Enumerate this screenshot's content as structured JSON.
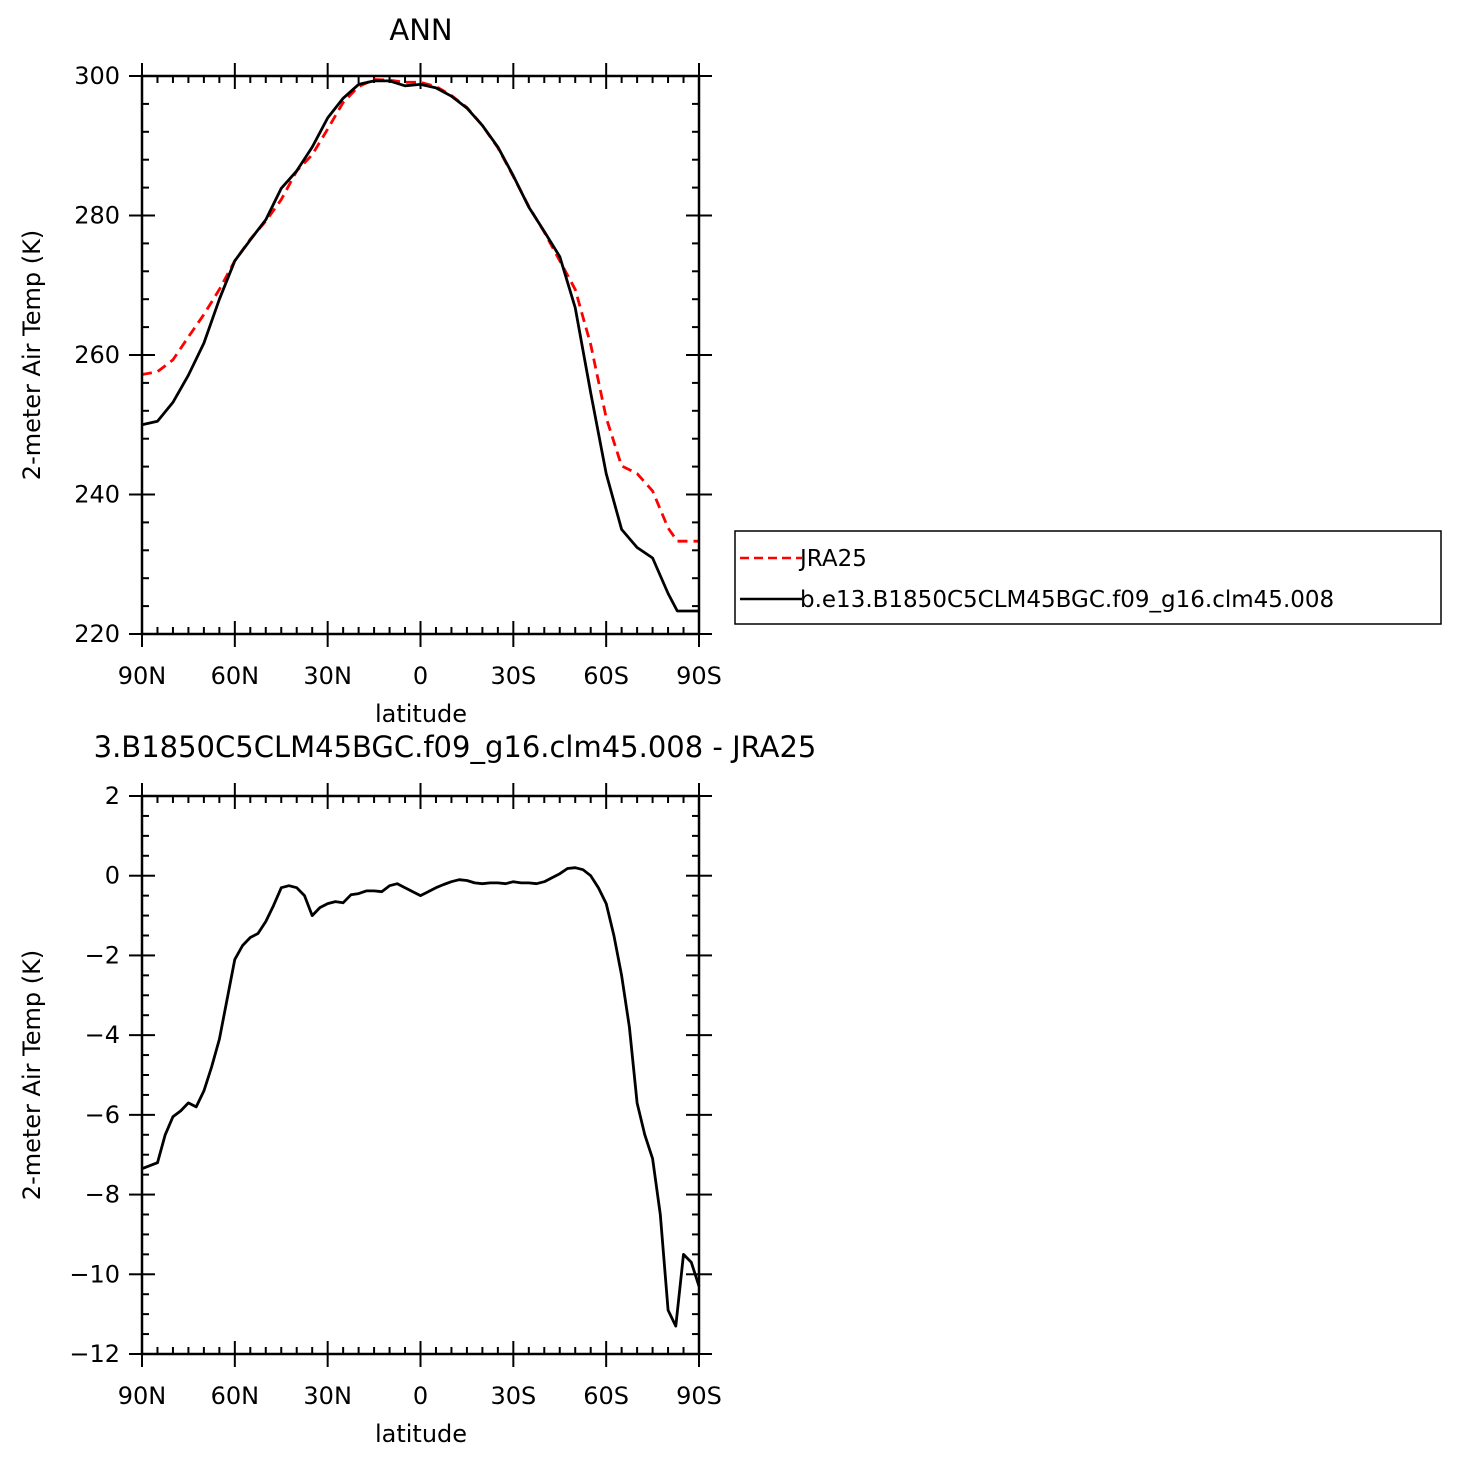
{
  "chart_data": [
    {
      "type": "line",
      "title": "ANN",
      "xlabel": "latitude",
      "ylabel": "2-meter Air Temp (K)",
      "xlim": [
        90,
        -90
      ],
      "ylim": [
        220,
        300
      ],
      "x_tick_labels": [
        "90N",
        "60N",
        "30N",
        "0",
        "30S",
        "60S",
        "90S"
      ],
      "x_tick_values": [
        90,
        60,
        30,
        0,
        -30,
        -60,
        -90
      ],
      "y_tick_values": [
        220,
        240,
        260,
        280,
        300
      ],
      "y_tick_labels": [
        "220",
        "240",
        "260",
        "280",
        "300"
      ],
      "legend_position": "right",
      "series": [
        {
          "name": "JRA25",
          "color": "#ff0000",
          "dash": "dashed",
          "x": [
            90,
            85,
            80,
            75,
            70,
            65,
            60,
            55,
            50,
            45,
            40,
            35,
            30,
            25,
            20,
            15,
            10,
            5,
            0,
            -5,
            -10,
            -15,
            -20,
            -25,
            -30,
            -35,
            -40,
            -45,
            -50,
            -55,
            -60,
            -65,
            -70,
            -75,
            -80,
            -83,
            -85,
            -88,
            -90
          ],
          "y": [
            257.2,
            257.6,
            259.3,
            262.6,
            265.8,
            269.4,
            273.5,
            276.6,
            279.2,
            282.3,
            286.4,
            288.7,
            292.4,
            296.2,
            298.5,
            299.5,
            299.4,
            299.1,
            299.1,
            298.5,
            297.2,
            295.5,
            292.9,
            289.7,
            285.6,
            281.3,
            277.6,
            273.5,
            269.4,
            261.5,
            251.0,
            244.1,
            243.0,
            240.5,
            235.2,
            233.3,
            233.3,
            233.3,
            233.3
          ]
        },
        {
          "name": "b.e13.B1850C5CLM45BGC.f09_g16.clm45.008",
          "color": "#000000",
          "dash": "solid",
          "x": [
            90,
            85,
            80,
            75,
            70,
            65,
            60,
            55,
            50,
            45,
            40,
            35,
            30,
            25,
            20,
            15,
            10,
            5,
            0,
            -5,
            -10,
            -15,
            -20,
            -25,
            -30,
            -35,
            -40,
            -45,
            -50,
            -55,
            -60,
            -65,
            -70,
            -75,
            -80,
            -83,
            -85,
            -88,
            -90
          ],
          "y": [
            250.0,
            250.5,
            253.2,
            257.1,
            261.7,
            268.0,
            273.5,
            276.5,
            279.4,
            283.9,
            286.4,
            289.8,
            294.0,
            296.8,
            298.8,
            299.3,
            299.3,
            298.6,
            298.8,
            298.3,
            297.1,
            295.4,
            292.9,
            289.8,
            285.7,
            281.2,
            277.7,
            274.1,
            266.8,
            254.6,
            243.0,
            235.0,
            232.4,
            230.9,
            225.8,
            223.3,
            223.3,
            223.3,
            223.3
          ]
        }
      ]
    },
    {
      "type": "line",
      "title": "3.B1850C5CLM45BGC.f09_g16.clm45.008 - JRA25",
      "xlabel": "latitude",
      "ylabel": "2-meter Air Temp (K)",
      "xlim": [
        90,
        -90
      ],
      "ylim": [
        -12,
        2
      ],
      "x_tick_labels": [
        "90N",
        "60N",
        "30N",
        "0",
        "30S",
        "60S",
        "90S"
      ],
      "x_tick_values": [
        90,
        60,
        30,
        0,
        -30,
        -60,
        -90
      ],
      "y_tick_values": [
        -12,
        -10,
        -8,
        -6,
        -4,
        -2,
        0,
        2
      ],
      "y_tick_labels": [
        "-12",
        "-10",
        "-8",
        "-6",
        "-4",
        "-2",
        "0",
        "2"
      ],
      "series": [
        {
          "color": "#000000",
          "dash": "solid",
          "x": [
            90,
            85,
            82.5,
            80,
            77.5,
            75,
            72.5,
            70,
            67.5,
            65,
            62.5,
            60,
            57.5,
            55,
            52.5,
            50,
            47.5,
            45,
            42.5,
            40,
            37.5,
            35,
            32.5,
            30,
            27.5,
            25,
            22.5,
            20,
            17.5,
            15,
            12.5,
            10,
            7.5,
            5,
            2.5,
            0,
            -2.5,
            -5,
            -7.5,
            -10,
            -12.5,
            -15,
            -17.5,
            -20,
            -22.5,
            -25,
            -27.5,
            -30,
            -32.5,
            -35,
            -37.5,
            -40,
            -42.5,
            -45,
            -47.5,
            -50,
            -52.5,
            -55,
            -57.5,
            -60,
            -62.5,
            -65,
            -67.5,
            -70,
            -72.5,
            -75,
            -77.5,
            -80,
            -82.5,
            -85,
            -87.5,
            -90
          ],
          "y": [
            -7.35,
            -7.2,
            -6.5,
            -6.05,
            -5.9,
            -5.7,
            -5.8,
            -5.4,
            -4.8,
            -4.1,
            -3.1,
            -2.1,
            -1.75,
            -1.55,
            -1.45,
            -1.15,
            -0.75,
            -0.3,
            -0.25,
            -0.3,
            -0.5,
            -1.0,
            -0.8,
            -0.7,
            -0.65,
            -0.68,
            -0.48,
            -0.45,
            -0.38,
            -0.38,
            -0.4,
            -0.25,
            -0.2,
            -0.3,
            -0.4,
            -0.5,
            -0.4,
            -0.3,
            -0.22,
            -0.15,
            -0.1,
            -0.12,
            -0.18,
            -0.2,
            -0.18,
            -0.18,
            -0.2,
            -0.15,
            -0.18,
            -0.18,
            -0.2,
            -0.15,
            -0.05,
            0.05,
            0.18,
            0.2,
            0.15,
            0.0,
            -0.3,
            -0.7,
            -1.5,
            -2.5,
            -3.8,
            -5.7,
            -6.5,
            -7.1,
            -8.5,
            -10.9,
            -11.3,
            -9.5,
            -9.7,
            -10.3
          ]
        }
      ]
    }
  ]
}
